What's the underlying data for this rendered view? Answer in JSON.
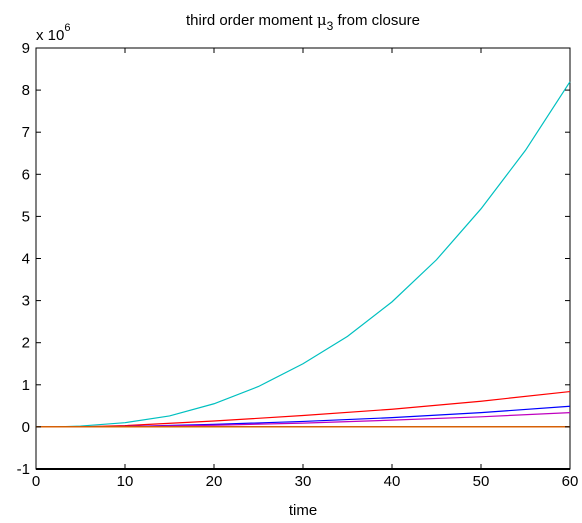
{
  "chart_data": {
    "type": "line",
    "title": "third order moment μ3 from closure",
    "title_parts": {
      "before": "third order moment ",
      "mu": "μ",
      "sub": "3",
      "after": " from closure"
    },
    "xlabel": "time",
    "ylabel": "",
    "xlim": [
      0,
      60
    ],
    "ylim": [
      -1,
      9
    ],
    "x_ticks": [
      0,
      10,
      20,
      30,
      40,
      50,
      60
    ],
    "y_ticks": [
      -1,
      0,
      1,
      2,
      3,
      4,
      5,
      6,
      7,
      8,
      9
    ],
    "y_multiplier": {
      "base": "x 10",
      "exp": "6"
    },
    "grid": false,
    "legend": "none",
    "series": [
      {
        "color": "#00c0c0",
        "x": [
          2.5,
          5,
          10,
          15,
          20,
          25,
          30,
          35,
          40,
          45,
          50,
          55,
          60
        ],
        "y": [
          0.0,
          0.02,
          0.1,
          0.26,
          0.55,
          0.96,
          1.5,
          2.15,
          2.97,
          3.97,
          5.18,
          6.57,
          8.2
        ]
      },
      {
        "color": "#ff0000",
        "x": [
          5,
          10,
          20,
          30,
          40,
          50,
          60
        ],
        "y": [
          0.0,
          0.03,
          0.14,
          0.27,
          0.42,
          0.61,
          0.84
        ]
      },
      {
        "color": "#0000ff",
        "x": [
          5,
          10,
          20,
          30,
          40,
          50,
          60
        ],
        "y": [
          0.0,
          0.01,
          0.06,
          0.13,
          0.22,
          0.34,
          0.49
        ]
      },
      {
        "color": "#bf00bf",
        "x": [
          5,
          10,
          20,
          30,
          40,
          50,
          60
        ],
        "y": [
          0.0,
          0.01,
          0.04,
          0.09,
          0.16,
          0.24,
          0.34
        ]
      },
      {
        "color": "#00a000",
        "x": [
          0,
          60
        ],
        "y": [
          0.0,
          0.0
        ]
      },
      {
        "color": "#c0c000",
        "x": [
          0,
          60
        ],
        "y": [
          0.0,
          0.0
        ]
      },
      {
        "color": "#c00000",
        "x": [
          0,
          60
        ],
        "y": [
          0.0,
          0.0
        ]
      },
      {
        "color": "#e06000",
        "x": [
          0,
          60
        ],
        "y": [
          0.0,
          0.0
        ]
      }
    ]
  }
}
